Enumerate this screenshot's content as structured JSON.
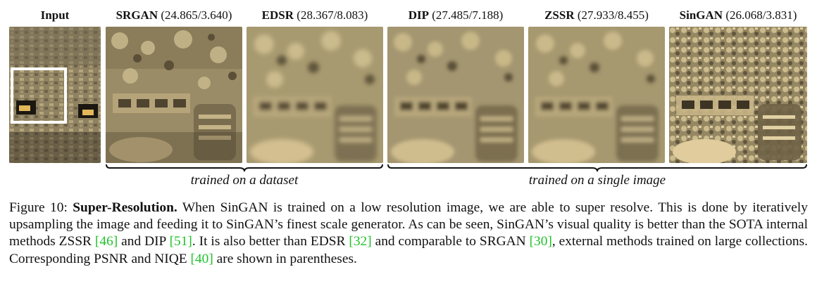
{
  "panels": [
    {
      "name": "Input",
      "scores": "",
      "tone": "input"
    },
    {
      "name": "SRGAN",
      "scores": "(24.865/3.640)",
      "tone": "sharp"
    },
    {
      "name": "EDSR",
      "scores": "(28.367/8.083)",
      "tone": "blur"
    },
    {
      "name": "DIP",
      "scores": "(27.485/7.188)",
      "tone": "blur"
    },
    {
      "name": "ZSSR",
      "scores": "(27.933/8.455)",
      "tone": "blur"
    },
    {
      "name": "SinGAN",
      "scores": "(26.068/3.831)",
      "tone": "sharp"
    }
  ],
  "groups": {
    "dataset": "trained on a dataset",
    "single": "trained on a single image"
  },
  "caption": {
    "prefix": "Figure 10: ",
    "title": "Super-Resolution.",
    "t1": " When SinGAN is trained on a low resolution image, we are able to super resolve.  This is done by iteratively upsampling the image and feeding it to SinGAN’s finest scale generator. As can be seen, SinGAN’s visual quality is better than the SOTA internal methods ZSSR ",
    "c1": "[46]",
    "t2": " and DIP ",
    "c2": "[51]",
    "t3": ". It is also better than EDSR ",
    "c3": "[32]",
    "t4": " and comparable to SRGAN ",
    "c4": "[30]",
    "t5": ", external methods trained on large collections. Corresponding PSNR and NIQE ",
    "c5": "[40]",
    "t6": " are shown in parentheses."
  },
  "colors": {
    "citation": "#22c22c",
    "stone_light": "#d8c9a0",
    "stone_dark": "#4a3f2c"
  }
}
